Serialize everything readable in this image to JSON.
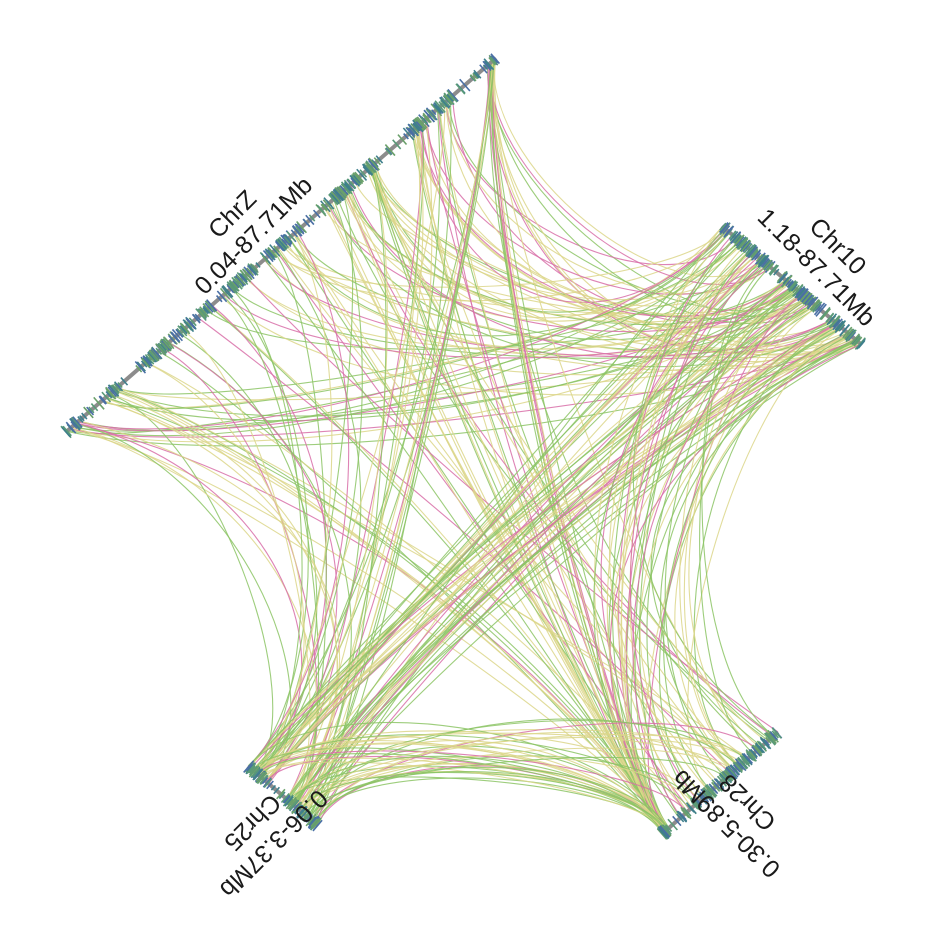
{
  "chromosomes": [
    {
      "id": "chrZ",
      "name": "ChrZ",
      "range": "0.04-87.71Mb"
    },
    {
      "id": "chr10",
      "name": "Chr10",
      "range": "1.18-87.71Mb"
    },
    {
      "id": "chr28",
      "name": "Chr28",
      "range": "0.30-5.89Mb"
    },
    {
      "id": "chr25",
      "name": "Chr25",
      "range": "0.06-3.37Mb"
    }
  ],
  "colors": {
    "axis": "#8c8c8c",
    "gene_marks": [
      "#3f7f8c",
      "#5a9a78",
      "#4a6fa5",
      "#6aa06a"
    ],
    "links": {
      "yellow": "#dcd68a",
      "green": "#8cc465",
      "pink": "#d86fa8"
    }
  }
}
